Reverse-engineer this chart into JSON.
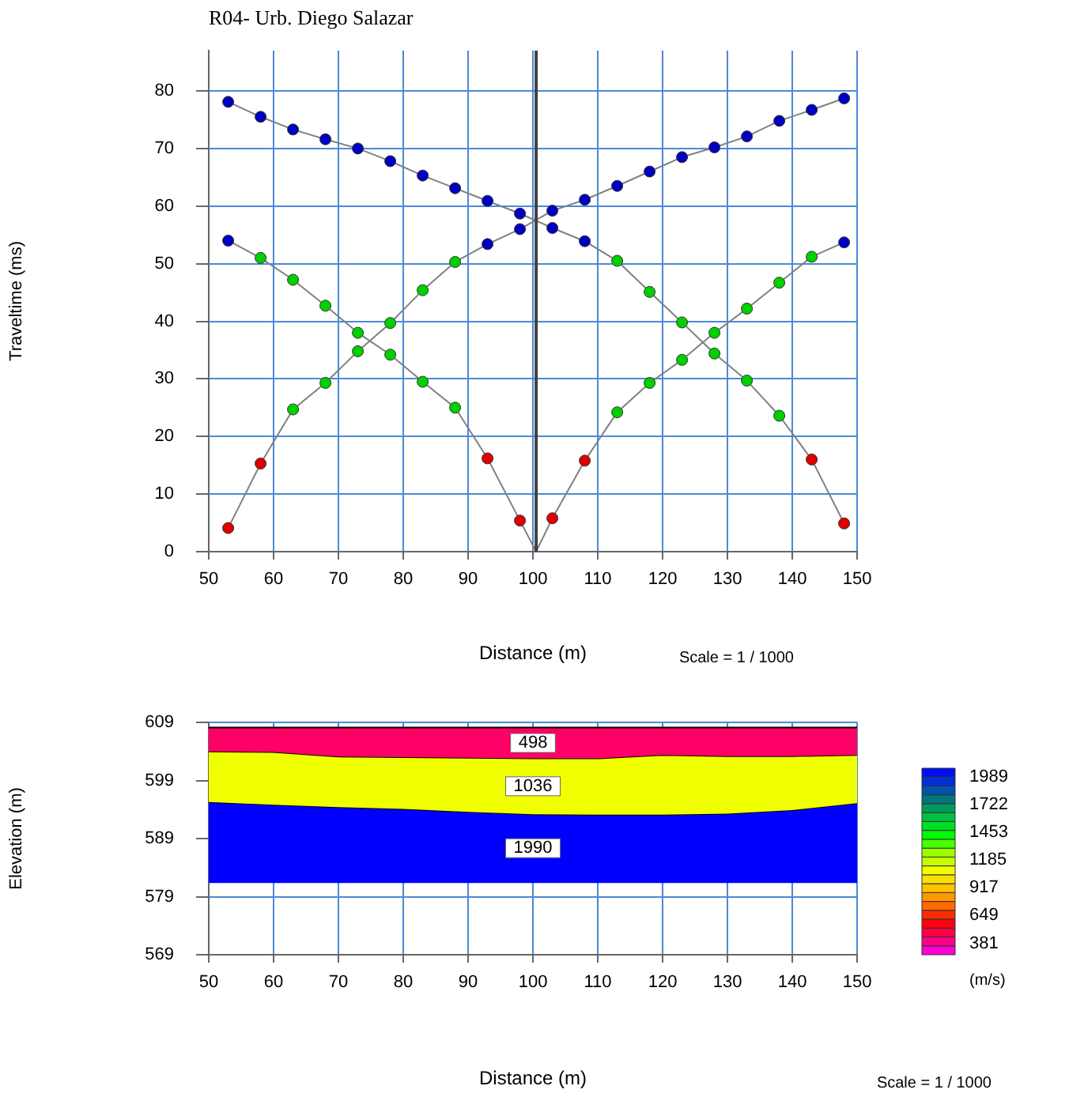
{
  "chart_data": [
    {
      "type": "line",
      "title": "R04- Urb. Diego Salazar",
      "xlabel": "Distance (m)",
      "ylabel": "Traveltime (ms)",
      "xlim": [
        50,
        150
      ],
      "xticks": [
        50,
        60,
        70,
        80,
        90,
        100,
        110,
        120,
        130,
        140,
        150
      ],
      "ylim": [
        0,
        87
      ],
      "yticks": [
        0,
        10,
        20,
        30,
        40,
        50,
        60,
        70,
        80
      ],
      "grid": true,
      "legend": false,
      "marker": "circle",
      "ref_lines": [
        {
          "axis": "x",
          "value": 100.5,
          "color": "#404040"
        }
      ],
      "annotations": [
        "Scale = 1 / 1000"
      ],
      "series": [
        {
          "color": "#808080",
          "x": [
            53,
            58,
            63,
            68,
            73,
            78,
            83,
            88,
            93,
            98,
            103,
            108,
            113,
            118,
            123,
            128,
            133,
            138,
            143,
            148
          ],
          "values": [
            4.1,
            15.3,
            24.7,
            29.3,
            34.8,
            39.7,
            45.4,
            50.3,
            53.4,
            56.0,
            59.2,
            61.1,
            63.5,
            66.0,
            68.5,
            70.2,
            72.1,
            74.8,
            76.7,
            78.7
          ],
          "colors": [
            "#e00000",
            "#e00000",
            "#00d000",
            "#00d000",
            "#00d000",
            "#00d000",
            "#00d000",
            "#00d000",
            "#0000c0",
            "#0000c0",
            "#0000c0",
            "#0000c0",
            "#0000c0",
            "#0000c0",
            "#0000c0",
            "#0000c0",
            "#0000c0",
            "#0000c0",
            "#0000c0",
            "#0000c0"
          ]
        },
        {
          "color": "#808080",
          "x": [
            53,
            58,
            63,
            68,
            73,
            78,
            83,
            88,
            93,
            98,
            100.5
          ],
          "values": [
            54.0,
            51.0,
            47.2,
            42.7,
            38.0,
            34.2,
            29.5,
            25.0,
            16.2,
            5.4,
            0
          ],
          "colors": [
            "#0000c0",
            "#00d000",
            "#00d000",
            "#00d000",
            "#00d000",
            "#00d000",
            "#00d000",
            "#00d000",
            "#e00000",
            "#e00000",
            null
          ]
        },
        {
          "color": "#808080",
          "x": [
            100.5,
            103,
            108,
            113,
            118,
            123,
            128,
            133,
            138,
            143,
            148
          ],
          "values": [
            0,
            5.8,
            15.8,
            24.2,
            29.3,
            33.3,
            38.0,
            42.2,
            46.7,
            51.2,
            53.7
          ],
          "colors": [
            null,
            "#e00000",
            "#e00000",
            "#00d000",
            "#00d000",
            "#00d000",
            "#00d000",
            "#00d000",
            "#00d000",
            "#00d000",
            "#0000c0"
          ]
        },
        {
          "color": "#808080",
          "x": [
            53,
            58,
            63,
            68,
            73,
            78,
            83,
            88,
            93,
            98,
            103,
            108,
            113,
            118,
            123,
            128,
            133,
            138,
            143,
            148
          ],
          "values": [
            78.1,
            75.5,
            73.3,
            71.6,
            70.0,
            67.8,
            65.3,
            63.1,
            60.9,
            58.7,
            56.2,
            53.9,
            50.5,
            45.1,
            39.8,
            34.4,
            29.7,
            23.6,
            16.0,
            4.9
          ],
          "colors": [
            "#0000c0",
            "#0000c0",
            "#0000c0",
            "#0000c0",
            "#0000c0",
            "#0000c0",
            "#0000c0",
            "#0000c0",
            "#0000c0",
            "#0000c0",
            "#0000c0",
            "#0000c0",
            "#00d000",
            "#00d000",
            "#00d000",
            "#00d000",
            "#00d000",
            "#00d000",
            "#e00000",
            "#e00000"
          ]
        }
      ]
    },
    {
      "type": "area",
      "xlabel": "Distance (m)",
      "ylabel": "Elevation (m)",
      "xlim": [
        50,
        150
      ],
      "xticks": [
        50,
        60,
        70,
        80,
        90,
        100,
        110,
        120,
        130,
        140,
        150
      ],
      "ylim": [
        569,
        609
      ],
      "yticks": [
        569,
        579,
        589,
        599,
        609
      ],
      "grid": true,
      "legend": false,
      "clim": [
        270,
        2070
      ],
      "cticks": [
        381,
        649,
        917,
        1185,
        1453,
        1722,
        1989
      ],
      "clabel": "(m/s)",
      "annotations": [
        "Scale = 1 / 1000"
      ],
      "series": [
        {
          "name": "498",
          "color": "#ff0066",
          "x": [
            50,
            60,
            70,
            80,
            90,
            100,
            110,
            120,
            130,
            140,
            150
          ],
          "values": [
            608.1,
            608.1,
            608.1,
            608.1,
            608.1,
            608.1,
            608.1,
            608.1,
            608.1,
            608.1,
            608.1
          ]
        },
        {
          "name": "1036",
          "color": "#f0ff00",
          "x": [
            50,
            60,
            70,
            80,
            90,
            100,
            110,
            120,
            130,
            140,
            150
          ],
          "values": [
            604.0,
            603.9,
            603.1,
            603.0,
            602.9,
            602.8,
            602.8,
            603.4,
            603.2,
            603.2,
            603.4
          ]
        },
        {
          "name": "1990",
          "color": "#0000ff",
          "x": [
            50,
            60,
            70,
            80,
            90,
            100,
            110,
            120,
            130,
            140,
            150
          ],
          "values": [
            595.3,
            594.8,
            594.4,
            594.1,
            593.6,
            593.2,
            593.1,
            593.1,
            593.3,
            593.9,
            595.1
          ]
        },
        {
          "type": "line",
          "color": "#0000ff",
          "x": [
            50,
            60,
            70,
            80,
            90,
            100,
            110,
            120,
            130,
            140,
            150
          ],
          "values": [
            581.5,
            581.5,
            581.5,
            581.5,
            581.5,
            581.5,
            581.5,
            581.5,
            581.5,
            581.5,
            581.5
          ]
        }
      ]
    }
  ]
}
